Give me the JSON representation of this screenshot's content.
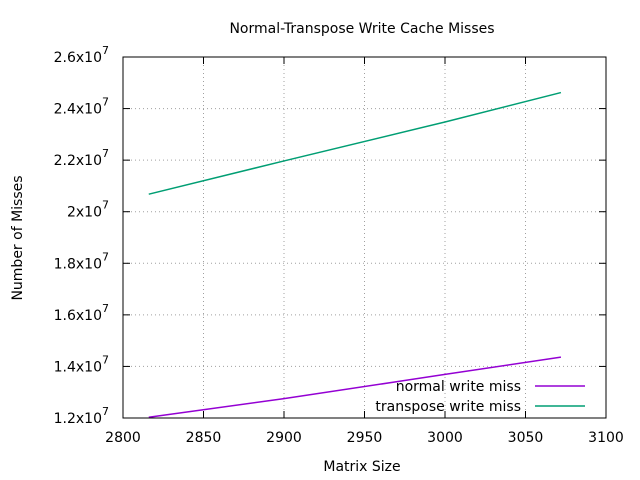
{
  "chart_data": {
    "type": "line",
    "title": "Normal-Transpose Write Cache Misses",
    "xlabel": "Matrix Size",
    "ylabel": "Number of Misses",
    "xlim": [
      2800,
      3100
    ],
    "ylim": [
      12000000,
      26000000
    ],
    "x_ticks": [
      2800,
      2850,
      2900,
      2950,
      3000,
      3050,
      3100
    ],
    "y_ticks": [
      {
        "value": 12000000,
        "mantissa": "1.2x10",
        "exp": "7"
      },
      {
        "value": 14000000,
        "mantissa": "1.4x10",
        "exp": "7"
      },
      {
        "value": 16000000,
        "mantissa": "1.6x10",
        "exp": "7"
      },
      {
        "value": 18000000,
        "mantissa": "1.8x10",
        "exp": "7"
      },
      {
        "value": 20000000,
        "mantissa": "2x10",
        "exp": "7"
      },
      {
        "value": 22000000,
        "mantissa": "2.2x10",
        "exp": "7"
      },
      {
        "value": 24000000,
        "mantissa": "2.4x10",
        "exp": "7"
      },
      {
        "value": 26000000,
        "mantissa": "2.6x10",
        "exp": "7"
      }
    ],
    "grid": true,
    "legend_position": "bottom-right",
    "series": [
      {
        "name": "normal write miss",
        "color": "#9400d3",
        "x": [
          2816,
          2900,
          3000,
          3072
        ],
        "y": [
          12030000,
          12750000,
          13690000,
          14360000
        ]
      },
      {
        "name": "transpose write miss",
        "color": "#009e73",
        "x": [
          2816,
          2900,
          3000,
          3072
        ],
        "y": [
          20680000,
          21970000,
          23480000,
          24620000
        ]
      }
    ]
  }
}
